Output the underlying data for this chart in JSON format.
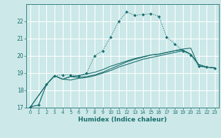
{
  "title": "",
  "xlabel": "Humidex (Indice chaleur)",
  "ylabel": "",
  "bg_color": "#cce8e8",
  "grid_color": "#ffffff",
  "line_color": "#1a6e6e",
  "xlim": [
    -0.5,
    23.5
  ],
  "ylim": [
    17,
    23
  ],
  "yticks": [
    17,
    18,
    19,
    20,
    21,
    22
  ],
  "xticks": [
    0,
    1,
    2,
    3,
    4,
    5,
    6,
    7,
    8,
    9,
    10,
    11,
    12,
    13,
    14,
    15,
    16,
    17,
    18,
    19,
    20,
    21,
    22,
    23
  ],
  "line1_x": [
    0,
    1,
    2,
    3,
    4,
    5,
    6,
    7,
    8,
    9,
    10,
    11,
    12,
    13,
    14,
    15,
    16,
    17,
    18,
    19,
    20,
    21,
    22,
    23
  ],
  "line1_y": [
    17.05,
    17.15,
    18.35,
    18.85,
    18.9,
    18.9,
    18.85,
    19.0,
    20.0,
    20.3,
    21.1,
    22.0,
    22.55,
    22.35,
    22.4,
    22.45,
    22.3,
    21.1,
    20.7,
    20.3,
    20.05,
    19.4,
    19.35,
    19.3
  ],
  "line2_x": [
    0,
    1,
    2,
    3,
    4,
    5,
    6,
    7,
    8,
    9,
    10,
    11,
    12,
    13,
    14,
    15,
    16,
    17,
    18,
    19,
    20,
    21,
    22,
    23
  ],
  "line2_y": [
    17.05,
    17.15,
    18.35,
    18.85,
    18.65,
    18.8,
    18.85,
    18.95,
    19.05,
    19.2,
    19.4,
    19.55,
    19.7,
    19.85,
    19.95,
    20.05,
    20.1,
    20.2,
    20.3,
    20.4,
    20.45,
    19.4,
    19.35,
    19.3
  ],
  "line3_x": [
    0,
    2,
    3,
    4,
    5,
    6,
    7,
    8,
    9,
    10,
    11,
    12,
    13,
    14,
    15,
    16,
    17,
    18,
    19,
    20,
    21,
    22,
    23
  ],
  "line3_y": [
    17.05,
    18.35,
    18.85,
    18.65,
    18.8,
    18.75,
    18.8,
    18.9,
    19.05,
    19.25,
    19.45,
    19.65,
    19.8,
    19.92,
    20.05,
    20.1,
    20.2,
    20.3,
    20.35,
    20.1,
    19.5,
    19.35,
    19.3
  ],
  "line4_x": [
    0,
    2,
    3,
    4,
    5,
    6,
    7,
    8,
    9,
    10,
    11,
    12,
    13,
    14,
    15,
    16,
    17,
    18,
    19,
    20,
    21,
    22,
    23
  ],
  "line4_y": [
    17.05,
    18.35,
    18.85,
    18.65,
    18.6,
    18.7,
    18.75,
    18.85,
    19.0,
    19.15,
    19.35,
    19.5,
    19.65,
    19.8,
    19.9,
    20.0,
    20.1,
    20.2,
    20.3,
    20.1,
    19.5,
    19.35,
    19.3
  ]
}
